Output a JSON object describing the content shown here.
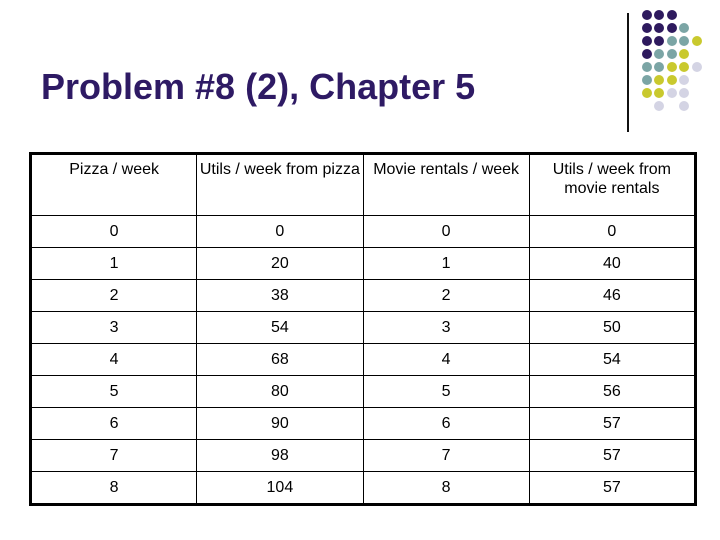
{
  "slide": {
    "title": "Problem #8 (2), Chapter 5",
    "title_color": "#2E1A64",
    "background_color": "#FFFFFF"
  },
  "decoration": {
    "divider_line_color": "#111111",
    "dot_colors": {
      "purple": "#2E1A5E",
      "teal": "#7BA5A5",
      "yellow": "#C9C92E",
      "gray": "#D4D4E4"
    },
    "dot_grid": [
      [
        "purple",
        "purple",
        "purple",
        null,
        null
      ],
      [
        "purple",
        "purple",
        "purple",
        "teal",
        null
      ],
      [
        "purple",
        "purple",
        "teal",
        "teal",
        "yellow"
      ],
      [
        "purple",
        "teal",
        "teal",
        "yellow",
        null
      ],
      [
        "teal",
        "teal",
        "yellow",
        "yellow",
        "gray"
      ],
      [
        "teal",
        "yellow",
        "yellow",
        "gray",
        null
      ],
      [
        "yellow",
        "yellow",
        "gray",
        "gray",
        null
      ],
      [
        null,
        "gray",
        null,
        "gray",
        null
      ]
    ]
  },
  "table": {
    "headers": [
      "Pizza / week",
      "Utils / week from pizza",
      "Movie rentals / week",
      "Utils / week from movie rentals"
    ],
    "rows": [
      [
        "0",
        "0",
        "0",
        "0"
      ],
      [
        "1",
        "20",
        "1",
        "40"
      ],
      [
        "2",
        "38",
        "2",
        "46"
      ],
      [
        "3",
        "54",
        "3",
        "50"
      ],
      [
        "4",
        "68",
        "4",
        "54"
      ],
      [
        "5",
        "80",
        "5",
        "56"
      ],
      [
        "6",
        "90",
        "6",
        "57"
      ],
      [
        "7",
        "98",
        "7",
        "57"
      ],
      [
        "8",
        "104",
        "8",
        "57"
      ]
    ]
  }
}
